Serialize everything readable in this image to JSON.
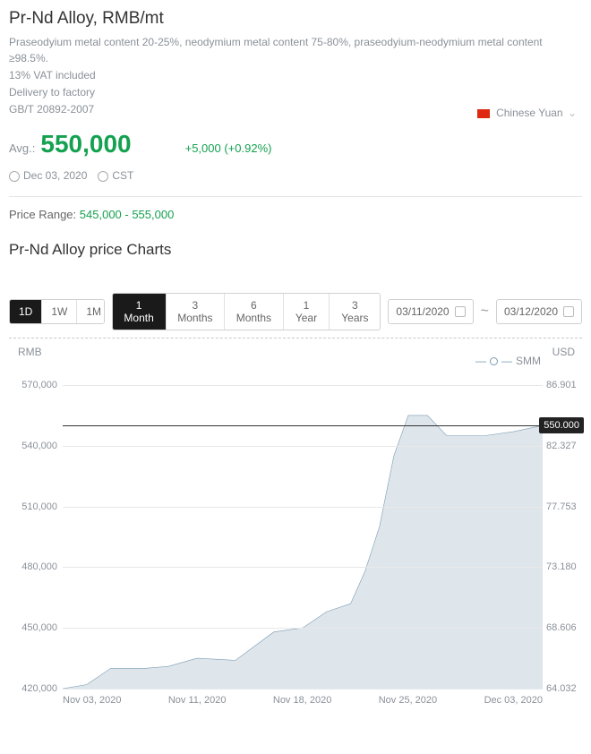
{
  "header": {
    "title": "Pr-Nd Alloy, RMB/mt",
    "desc_lines": [
      "Praseodyium metal content 20-25%, neodymium metal content 75-80%, praseodyium-neodymium metal content ≥98.5%.",
      "13% VAT included",
      "Delivery to factory",
      "GB/T 20892-2007"
    ]
  },
  "price": {
    "avg_label": "Avg.:",
    "value": "550,000",
    "change": "+5,000 (+0.92%)",
    "change_color": "#14a150"
  },
  "currency_selector": {
    "label": "Chinese Yuan"
  },
  "meta": {
    "date": "Dec 03, 2020",
    "tz": "CST"
  },
  "range": {
    "label": "Price Range:",
    "value": "545,000 - 555,000"
  },
  "section_title": "Pr-Nd Alloy price Charts",
  "intervals": [
    "1D",
    "1W",
    "1M"
  ],
  "intervals_active": 0,
  "periods": [
    "1 Month",
    "3 Months",
    "6 Months",
    "1 Year",
    "3 Years"
  ],
  "periods_active": 0,
  "date_start": "03/11/2020",
  "date_end": "03/12/2020",
  "chart": {
    "left_axis_label": "RMB",
    "right_axis_label": "USD",
    "legend_series": "SMM",
    "line_color": "#7a9bb3",
    "fill_color": "rgba(122,155,179,0.25)",
    "background_color": "#ffffff",
    "grid_color": "#e8e8e8",
    "axis_color": "#aaaaaa",
    "font_size": 11,
    "y_min": 420000,
    "y_max": 570000,
    "y_ticks_left": [
      "570,000",
      "540,000",
      "510,000",
      "480,000",
      "450,000",
      "420,000"
    ],
    "y_ticks_left_vals": [
      570000,
      540000,
      510000,
      480000,
      450000,
      420000
    ],
    "y_ticks_right": [
      "86.901",
      "82.327",
      "77.753",
      "73.180",
      "68.606",
      "64.032"
    ],
    "x_labels": [
      "Nov 03, 2020",
      "Nov 11, 2020",
      "Nov 18, 2020",
      "Nov 25, 2020",
      "Dec 03, 2020"
    ],
    "reference_value": 550000,
    "reference_label": "550.000",
    "points": [
      [
        0.0,
        420000
      ],
      [
        0.05,
        422000
      ],
      [
        0.1,
        430000
      ],
      [
        0.17,
        430000
      ],
      [
        0.22,
        431000
      ],
      [
        0.28,
        435000
      ],
      [
        0.36,
        434000
      ],
      [
        0.44,
        448000
      ],
      [
        0.5,
        450000
      ],
      [
        0.55,
        458000
      ],
      [
        0.6,
        462000
      ],
      [
        0.63,
        478000
      ],
      [
        0.66,
        500000
      ],
      [
        0.69,
        535000
      ],
      [
        0.72,
        555000
      ],
      [
        0.76,
        555000
      ],
      [
        0.8,
        545000
      ],
      [
        0.88,
        545000
      ],
      [
        0.94,
        547000
      ],
      [
        1.0,
        550000
      ]
    ]
  }
}
